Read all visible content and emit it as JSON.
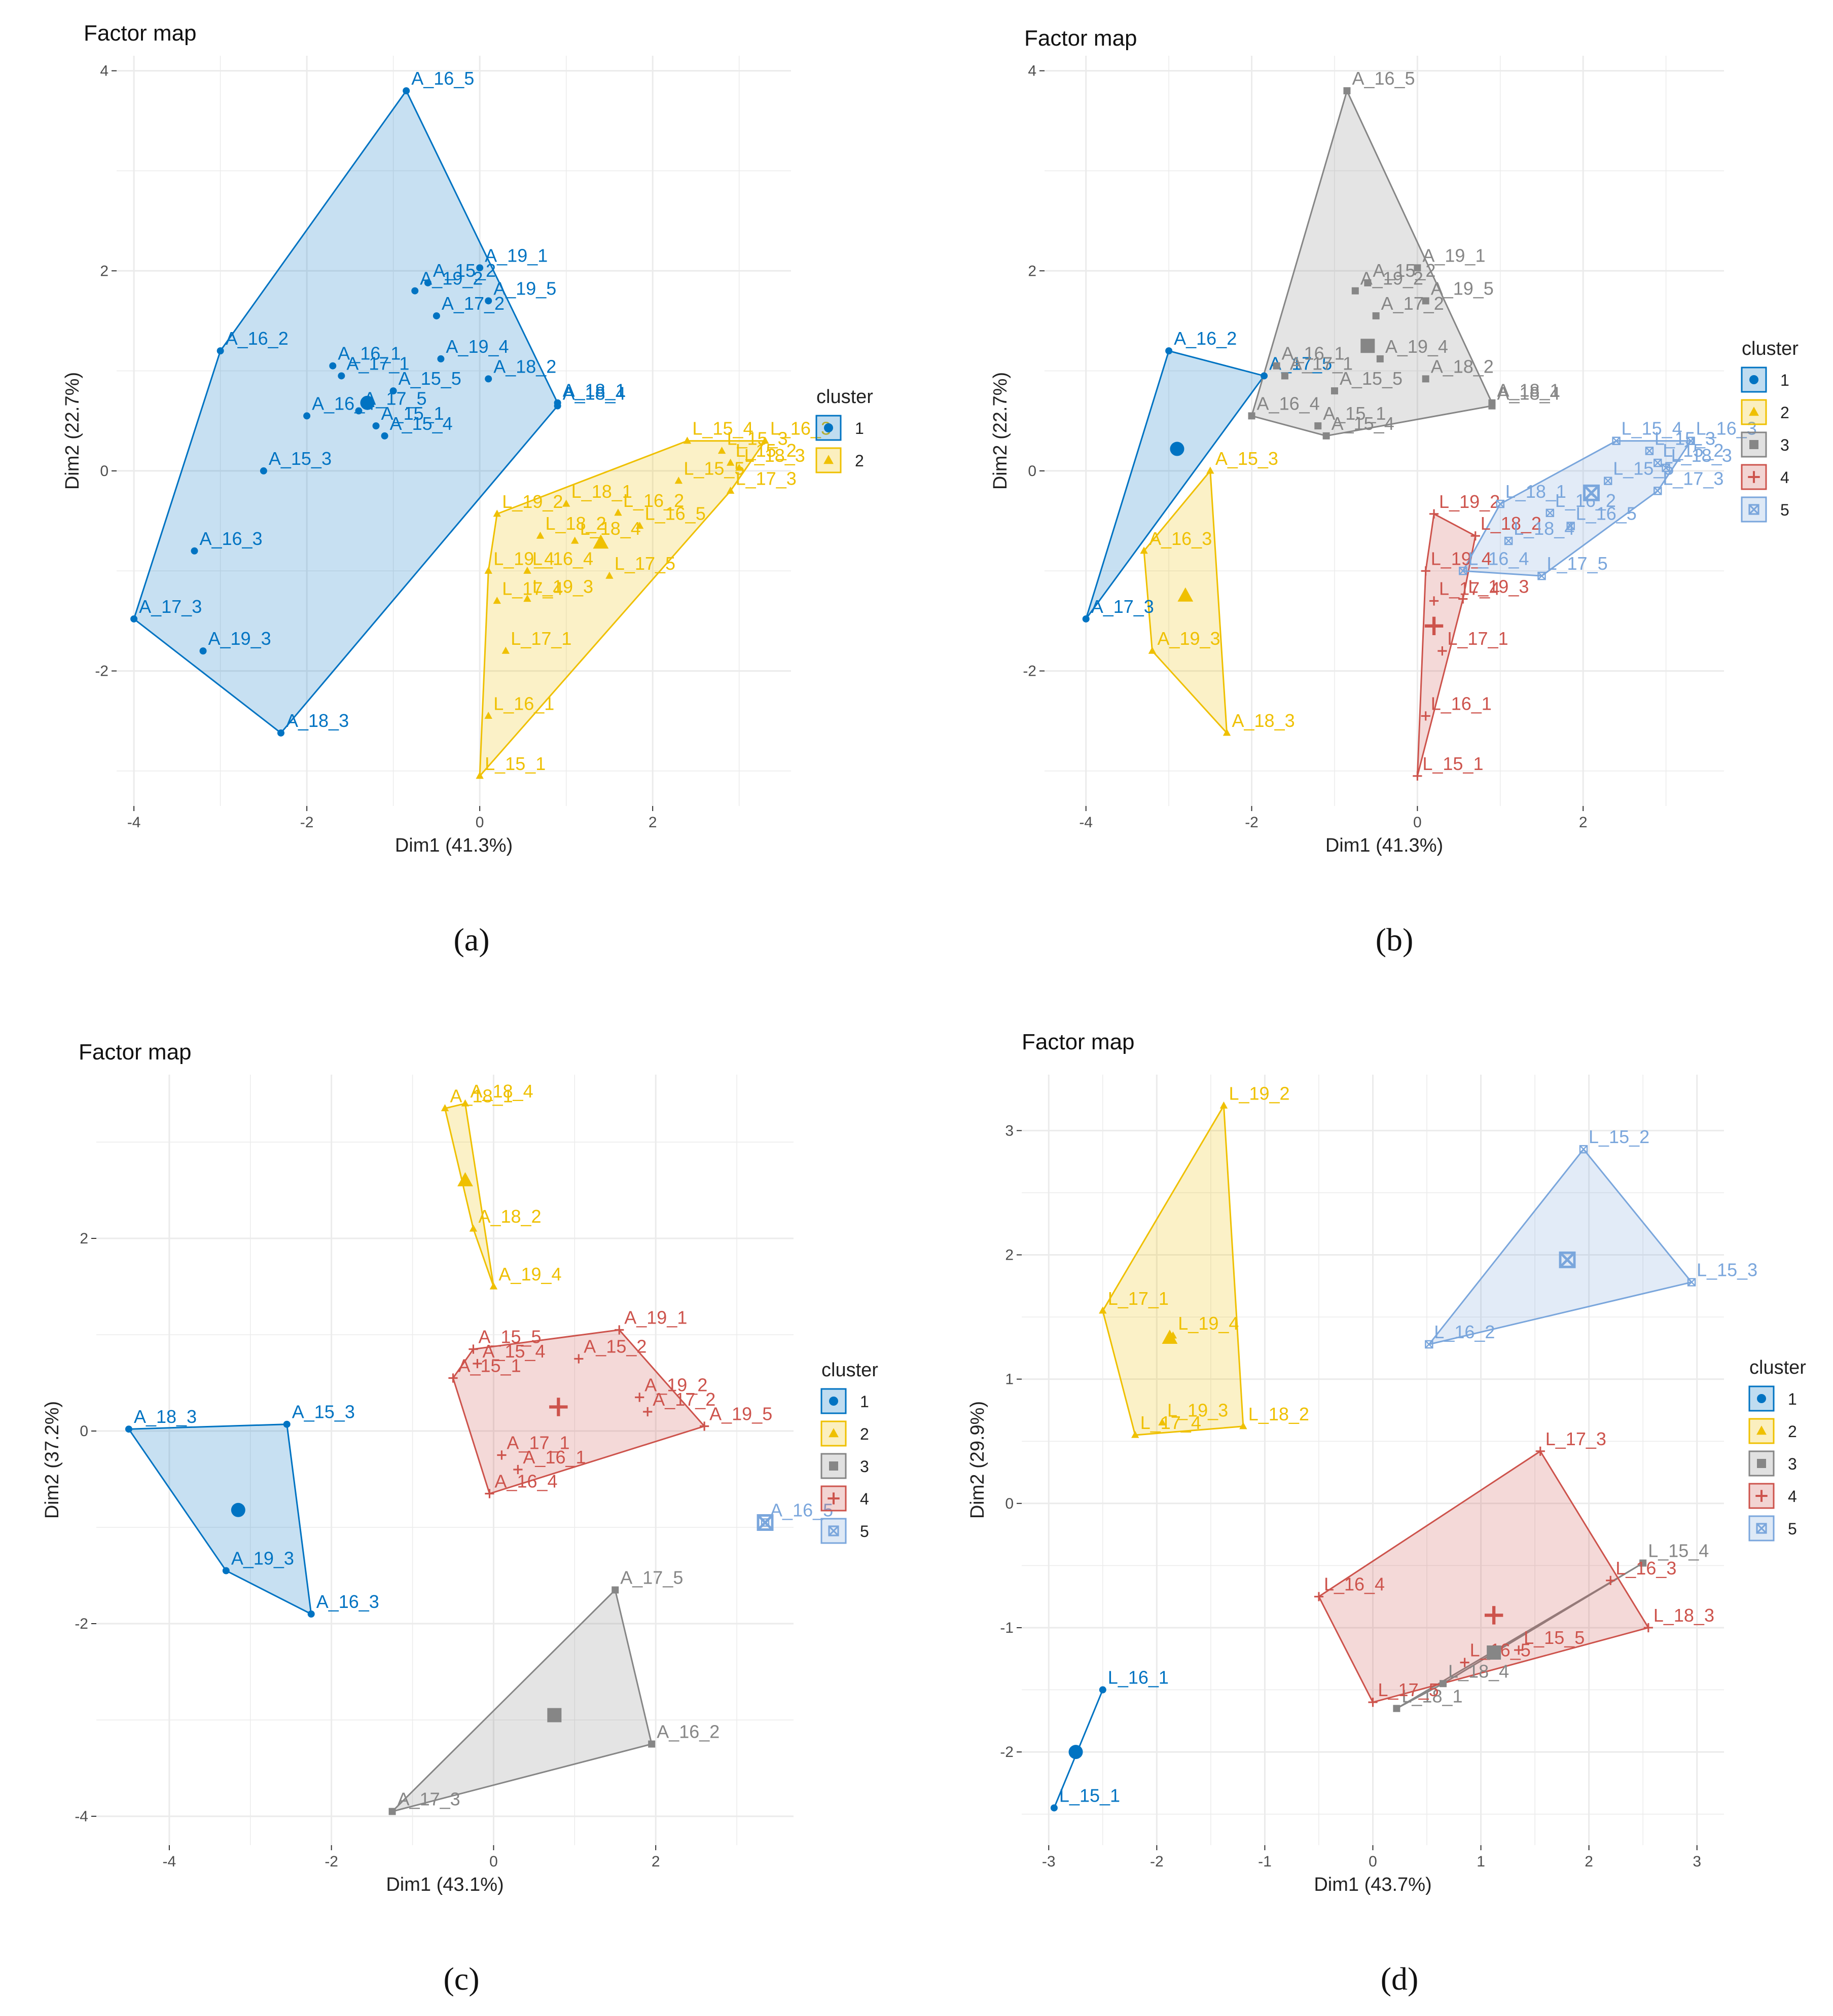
{
  "figure": {
    "panel_captions": [
      "(a)",
      "(b)",
      "(c)",
      "(d)"
    ]
  },
  "legend_title": "cluster",
  "cluster_colors": {
    "1": "#0073C2",
    "2": "#EFC000",
    "3": "#868686",
    "4": "#CD534C",
    "5": "#7AA6DC"
  },
  "chart_data": [
    {
      "type": "scatter",
      "caption": "(a)",
      "title": "Factor map",
      "xlabel": "Dim1 (41.3%)",
      "ylabel": "Dim2 (22.7%)",
      "xlim": [
        -4.2,
        3.6
      ],
      "ylim": [
        -3.35,
        4.15
      ],
      "xticks": [
        -4,
        -2,
        0,
        2
      ],
      "yticks": [
        -2,
        0,
        2,
        4
      ],
      "legend": [
        "1",
        "2"
      ],
      "centers": [
        {
          "c": 1,
          "x": -1.3,
          "y": 0.68
        },
        {
          "c": 2,
          "x": 1.4,
          "y": -0.72
        }
      ],
      "points": [
        {
          "l": "A_16_5",
          "x": -0.85,
          "y": 3.8,
          "c": 1
        },
        {
          "l": "A_19_1",
          "x": 0.0,
          "y": 2.03,
          "c": 1
        },
        {
          "l": "A_19_2",
          "x": -0.75,
          "y": 1.8,
          "c": 1
        },
        {
          "l": "A_19_5",
          "x": 0.1,
          "y": 1.7,
          "c": 1
        },
        {
          "l": "A_15_2",
          "x": -0.6,
          "y": 1.88,
          "c": 1
        },
        {
          "l": "A_17_2",
          "x": -0.5,
          "y": 1.55,
          "c": 1
        },
        {
          "l": "A_19_4",
          "x": -0.45,
          "y": 1.12,
          "c": 1
        },
        {
          "l": "A_18_1",
          "x": 0.9,
          "y": 0.68,
          "c": 1
        },
        {
          "l": "A_16_2",
          "x": -3.0,
          "y": 1.2,
          "c": 1
        },
        {
          "l": "A_16_1",
          "x": -1.7,
          "y": 1.05,
          "c": 1
        },
        {
          "l": "A_15_5",
          "x": -1.0,
          "y": 0.8,
          "c": 1
        },
        {
          "l": "A_18_2",
          "x": 0.1,
          "y": 0.92,
          "c": 1
        },
        {
          "l": "A_17_5",
          "x": -1.4,
          "y": 0.6,
          "c": 1
        },
        {
          "l": "A_16_4",
          "x": -2.0,
          "y": 0.55,
          "c": 1
        },
        {
          "l": "A_15_1",
          "x": -1.2,
          "y": 0.45,
          "c": 1
        },
        {
          "l": "A_18_4",
          "x": 0.9,
          "y": 0.65,
          "c": 1
        },
        {
          "l": "A_17_1",
          "x": -1.6,
          "y": 0.95,
          "c": 1
        },
        {
          "l": "A_15_4",
          "x": -1.1,
          "y": 0.35,
          "c": 1
        },
        {
          "l": "A_15_3",
          "x": -2.5,
          "y": 0.0,
          "c": 1
        },
        {
          "l": "A_16_3",
          "x": -3.3,
          "y": -0.8,
          "c": 1
        },
        {
          "l": "A_17_3",
          "x": -4.0,
          "y": -1.48,
          "c": 1
        },
        {
          "l": "A_19_3",
          "x": -3.2,
          "y": -1.8,
          "c": 1
        },
        {
          "l": "A_18_3",
          "x": -2.3,
          "y": -2.62,
          "c": 1
        },
        {
          "l": "L_16_3",
          "x": 3.3,
          "y": 0.3,
          "c": 2
        },
        {
          "l": "L_15_4",
          "x": 2.4,
          "y": 0.3,
          "c": 2
        },
        {
          "l": "L_15_3",
          "x": 2.8,
          "y": 0.2,
          "c": 2
        },
        {
          "l": "L_15_2",
          "x": 2.9,
          "y": 0.08,
          "c": 2
        },
        {
          "l": "L_18_3",
          "x": 3.0,
          "y": 0.03,
          "c": 2
        },
        {
          "l": "L_15_5",
          "x": 2.3,
          "y": -0.1,
          "c": 2
        },
        {
          "l": "L_17_3",
          "x": 2.9,
          "y": -0.2,
          "c": 2
        },
        {
          "l": "L_18_1",
          "x": 1.0,
          "y": -0.33,
          "c": 2
        },
        {
          "l": "L_16_2",
          "x": 1.6,
          "y": -0.42,
          "c": 2
        },
        {
          "l": "L_19_2",
          "x": 0.2,
          "y": -0.43,
          "c": 2
        },
        {
          "l": "L_16_5",
          "x": 1.85,
          "y": -0.55,
          "c": 2
        },
        {
          "l": "L_18_2",
          "x": 0.7,
          "y": -0.65,
          "c": 2
        },
        {
          "l": "L_18_4",
          "x": 1.1,
          "y": -0.7,
          "c": 2
        },
        {
          "l": "L_19_4",
          "x": 0.1,
          "y": -1.0,
          "c": 2
        },
        {
          "l": "L_16_4",
          "x": 0.55,
          "y": -1.0,
          "c": 2
        },
        {
          "l": "L_17_5",
          "x": 1.5,
          "y": -1.05,
          "c": 2
        },
        {
          "l": "L_17_4",
          "x": 0.2,
          "y": -1.3,
          "c": 2
        },
        {
          "l": "L_19_3",
          "x": 0.55,
          "y": -1.28,
          "c": 2
        },
        {
          "l": "L_17_1",
          "x": 0.3,
          "y": -1.8,
          "c": 2
        },
        {
          "l": "L_16_1",
          "x": 0.1,
          "y": -2.45,
          "c": 2
        },
        {
          "l": "L_15_1",
          "x": 0.0,
          "y": -3.05,
          "c": 2
        }
      ]
    },
    {
      "type": "scatter",
      "caption": "(b)",
      "title": "Factor map",
      "xlabel": "Dim1 (41.3%)",
      "ylabel": "Dim2 (22.7%)",
      "xlim": [
        -4.5,
        3.7
      ],
      "ylim": [
        -3.35,
        4.15
      ],
      "xticks": [
        -4,
        -2,
        0,
        2
      ],
      "yticks": [
        -2,
        0,
        2,
        4
      ],
      "legend": [
        "1",
        "2",
        "3",
        "4",
        "5"
      ],
      "centers": [
        {
          "c": 1,
          "x": -2.9,
          "y": 0.22
        },
        {
          "c": 2,
          "x": -2.8,
          "y": -1.25
        },
        {
          "c": 3,
          "x": -0.6,
          "y": 1.25
        },
        {
          "c": 4,
          "x": 0.2,
          "y": -1.55
        },
        {
          "c": 5,
          "x": 2.1,
          "y": -0.22
        }
      ],
      "points": [
        {
          "l": "A_16_2",
          "x": -3.0,
          "y": 1.2,
          "c": 1
        },
        {
          "l": "A_17_5",
          "x": -1.85,
          "y": 0.95,
          "c": 1
        },
        {
          "l": "A_17_3",
          "x": -4.0,
          "y": -1.48,
          "c": 1
        },
        {
          "l": "A_15_3",
          "x": -2.5,
          "y": 0.0,
          "c": 2
        },
        {
          "l": "A_16_3",
          "x": -3.3,
          "y": -0.8,
          "c": 2
        },
        {
          "l": "A_19_3",
          "x": -3.2,
          "y": -1.8,
          "c": 2
        },
        {
          "l": "A_18_3",
          "x": -2.3,
          "y": -2.62,
          "c": 2
        },
        {
          "l": "A_16_5",
          "x": -0.85,
          "y": 3.8,
          "c": 3
        },
        {
          "l": "A_19_1",
          "x": 0.0,
          "y": 2.03,
          "c": 3
        },
        {
          "l": "A_19_2",
          "x": -0.75,
          "y": 1.8,
          "c": 3
        },
        {
          "l": "A_19_5",
          "x": 0.1,
          "y": 1.7,
          "c": 3
        },
        {
          "l": "A_15_2",
          "x": -0.6,
          "y": 1.88,
          "c": 3
        },
        {
          "l": "A_17_2",
          "x": -0.5,
          "y": 1.55,
          "c": 3
        },
        {
          "l": "A_19_4",
          "x": -0.45,
          "y": 1.12,
          "c": 3
        },
        {
          "l": "A_18_1",
          "x": 0.9,
          "y": 0.68,
          "c": 3
        },
        {
          "l": "A_16_1",
          "x": -1.7,
          "y": 1.05,
          "c": 3
        },
        {
          "l": "A_15_5",
          "x": -1.0,
          "y": 0.8,
          "c": 3
        },
        {
          "l": "A_18_2",
          "x": 0.1,
          "y": 0.92,
          "c": 3
        },
        {
          "l": "A_16_4",
          "x": -2.0,
          "y": 0.55,
          "c": 3
        },
        {
          "l": "A_15_1",
          "x": -1.2,
          "y": 0.45,
          "c": 3
        },
        {
          "l": "A_18_4",
          "x": 0.9,
          "y": 0.65,
          "c": 3
        },
        {
          "l": "A_17_1",
          "x": -1.6,
          "y": 0.95,
          "c": 3
        },
        {
          "l": "A_15_4",
          "x": -1.1,
          "y": 0.35,
          "c": 3
        },
        {
          "l": "L_19_2",
          "x": 0.2,
          "y": -0.43,
          "c": 4
        },
        {
          "l": "L_18_2",
          "x": 0.7,
          "y": -0.65,
          "c": 4
        },
        {
          "l": "L_19_4",
          "x": 0.1,
          "y": -1.0,
          "c": 4
        },
        {
          "l": "L_17_4",
          "x": 0.2,
          "y": -1.3,
          "c": 4
        },
        {
          "l": "L_19_3",
          "x": 0.55,
          "y": -1.28,
          "c": 4
        },
        {
          "l": "L_17_1",
          "x": 0.3,
          "y": -1.8,
          "c": 4
        },
        {
          "l": "L_16_1",
          "x": 0.1,
          "y": -2.45,
          "c": 4
        },
        {
          "l": "L_15_1",
          "x": 0.0,
          "y": -3.05,
          "c": 4
        },
        {
          "l": "L_16_3",
          "x": 3.3,
          "y": 0.3,
          "c": 5
        },
        {
          "l": "L_15_4",
          "x": 2.4,
          "y": 0.3,
          "c": 5
        },
        {
          "l": "L_15_3",
          "x": 2.8,
          "y": 0.2,
          "c": 5
        },
        {
          "l": "L_15_2",
          "x": 2.9,
          "y": 0.08,
          "c": 5
        },
        {
          "l": "L_18_3",
          "x": 3.0,
          "y": 0.03,
          "c": 5
        },
        {
          "l": "L_15_5",
          "x": 2.3,
          "y": -0.1,
          "c": 5
        },
        {
          "l": "L_17_3",
          "x": 2.9,
          "y": -0.2,
          "c": 5
        },
        {
          "l": "L_18_1",
          "x": 1.0,
          "y": -0.33,
          "c": 5
        },
        {
          "l": "L_16_2",
          "x": 1.6,
          "y": -0.42,
          "c": 5
        },
        {
          "l": "L_16_5",
          "x": 1.85,
          "y": -0.55,
          "c": 5
        },
        {
          "l": "L_18_4",
          "x": 1.1,
          "y": -0.7,
          "c": 5
        },
        {
          "l": "L_16_4",
          "x": 0.55,
          "y": -1.0,
          "c": 5
        },
        {
          "l": "L_17_5",
          "x": 1.5,
          "y": -1.05,
          "c": 5
        }
      ]
    },
    {
      "type": "scatter",
      "caption": "(c)",
      "title": "Factor map",
      "xlabel": "Dim1 (43.1%)",
      "ylabel": "Dim2 (37.2%)",
      "xlim": [
        -4.9,
        3.7
      ],
      "ylim": [
        -4.3,
        3.7
      ],
      "xticks": [
        -4,
        -2,
        0,
        2
      ],
      "yticks": [
        -4,
        -2,
        0,
        2
      ],
      "legend": [
        "1",
        "2",
        "3",
        "4",
        "5"
      ],
      "centers": [
        {
          "c": 1,
          "x": -3.15,
          "y": -0.82
        },
        {
          "c": 2,
          "x": -0.35,
          "y": 2.6
        },
        {
          "c": 3,
          "x": 0.75,
          "y": -2.95
        },
        {
          "c": 4,
          "x": 0.8,
          "y": 0.25
        },
        {
          "c": 5,
          "x": 3.35,
          "y": -0.95
        }
      ],
      "points": [
        {
          "l": "A_18_3",
          "x": -4.5,
          "y": 0.02,
          "c": 1
        },
        {
          "l": "A_15_3",
          "x": -2.55,
          "y": 0.07,
          "c": 1
        },
        {
          "l": "A_19_3",
          "x": -3.3,
          "y": -1.45,
          "c": 1
        },
        {
          "l": "A_16_3",
          "x": -2.25,
          "y": -1.9,
          "c": 1
        },
        {
          "l": "A_18_4",
          "x": -0.35,
          "y": 3.4,
          "c": 2
        },
        {
          "l": "A_18_1",
          "x": -0.6,
          "y": 3.35,
          "c": 2
        },
        {
          "l": "A_18_2",
          "x": -0.25,
          "y": 2.1,
          "c": 2
        },
        {
          "l": "A_19_4",
          "x": 0.0,
          "y": 1.5,
          "c": 2
        },
        {
          "l": "A_17_5",
          "x": 1.5,
          "y": -1.65,
          "c": 3
        },
        {
          "l": "A_16_2",
          "x": 1.95,
          "y": -3.25,
          "c": 3
        },
        {
          "l": "A_17_3",
          "x": -1.25,
          "y": -3.95,
          "c": 3
        },
        {
          "l": "A_19_1",
          "x": 1.55,
          "y": 1.05,
          "c": 4
        },
        {
          "l": "A_15_5",
          "x": -0.25,
          "y": 0.85,
          "c": 4
        },
        {
          "l": "A_15_2",
          "x": 1.05,
          "y": 0.75,
          "c": 4
        },
        {
          "l": "A_15_4",
          "x": -0.2,
          "y": 0.7,
          "c": 4
        },
        {
          "l": "A_15_1",
          "x": -0.5,
          "y": 0.55,
          "c": 4
        },
        {
          "l": "A_19_2",
          "x": 1.8,
          "y": 0.35,
          "c": 4
        },
        {
          "l": "A_17_2",
          "x": 1.9,
          "y": 0.2,
          "c": 4
        },
        {
          "l": "A_19_5",
          "x": 2.6,
          "y": 0.05,
          "c": 4
        },
        {
          "l": "A_17_1",
          "x": 0.1,
          "y": -0.25,
          "c": 4
        },
        {
          "l": "A_16_1",
          "x": 0.3,
          "y": -0.4,
          "c": 4
        },
        {
          "l": "A_16_4",
          "x": -0.05,
          "y": -0.65,
          "c": 4
        },
        {
          "l": "A_16_5",
          "x": 3.35,
          "y": -0.95,
          "c": 5
        }
      ]
    },
    {
      "type": "scatter",
      "caption": "(d)",
      "title": "Factor map",
      "xlabel": "Dim1 (43.7%)",
      "ylabel": "Dim2 (29.9%)",
      "xlim": [
        -3.25,
        3.25
      ],
      "ylim": [
        -2.75,
        3.45
      ],
      "xticks": [
        -3,
        -2,
        -1,
        0,
        1,
        2,
        3
      ],
      "yticks": [
        -2,
        -1,
        0,
        1,
        2,
        3
      ],
      "legend": [
        "1",
        "2",
        "3",
        "4",
        "5"
      ],
      "centers": [
        {
          "c": 1,
          "x": -2.75,
          "y": -2.0
        },
        {
          "c": 2,
          "x": -1.88,
          "y": 1.33
        },
        {
          "c": 3,
          "x": 1.12,
          "y": -1.2
        },
        {
          "c": 4,
          "x": 1.12,
          "y": -0.9
        },
        {
          "c": 5,
          "x": 1.8,
          "y": 1.96
        }
      ],
      "points": [
        {
          "l": "L_16_1",
          "x": -2.5,
          "y": -1.5,
          "c": 1
        },
        {
          "l": "L_15_1",
          "x": -2.95,
          "y": -2.45,
          "c": 1
        },
        {
          "l": "L_19_2",
          "x": -1.38,
          "y": 3.2,
          "c": 2
        },
        {
          "l": "L_17_1",
          "x": -2.5,
          "y": 1.55,
          "c": 2
        },
        {
          "l": "L_19_4",
          "x": -1.85,
          "y": 1.35,
          "c": 2
        },
        {
          "l": "L_19_3",
          "x": -1.95,
          "y": 0.65,
          "c": 2
        },
        {
          "l": "L_17_4",
          "x": -2.2,
          "y": 0.55,
          "c": 2
        },
        {
          "l": "L_18_2",
          "x": -1.2,
          "y": 0.62,
          "c": 2
        },
        {
          "l": "L_15_4",
          "x": 2.5,
          "y": -0.48,
          "c": 3
        },
        {
          "l": "L_18_4",
          "x": 0.65,
          "y": -1.45,
          "c": 3
        },
        {
          "l": "L_18_1",
          "x": 0.22,
          "y": -1.65,
          "c": 3
        },
        {
          "l": "L_17_3",
          "x": 1.55,
          "y": 0.42,
          "c": 4
        },
        {
          "l": "L_16_4",
          "x": -0.5,
          "y": -0.75,
          "c": 4
        },
        {
          "l": "L_16_3",
          "x": 2.2,
          "y": -0.62,
          "c": 4
        },
        {
          "l": "L_18_3",
          "x": 2.55,
          "y": -1.0,
          "c": 4
        },
        {
          "l": "L_15_5",
          "x": 1.35,
          "y": -1.18,
          "c": 4
        },
        {
          "l": "L_16_5",
          "x": 0.85,
          "y": -1.28,
          "c": 4
        },
        {
          "l": "L_17_5",
          "x": 0.0,
          "y": -1.6,
          "c": 4
        },
        {
          "l": "L_15_2",
          "x": 1.95,
          "y": 2.85,
          "c": 5
        },
        {
          "l": "L_15_3",
          "x": 2.95,
          "y": 1.78,
          "c": 5
        },
        {
          "l": "L_16_2",
          "x": 0.52,
          "y": 1.28,
          "c": 5
        }
      ]
    }
  ]
}
